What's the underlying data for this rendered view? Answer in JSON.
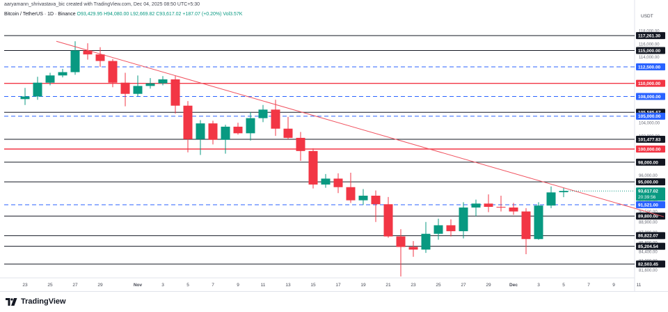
{
  "header": {
    "created_line": "aaryamann_shrivastava_bic created with TradingView.com, Dec 04, 2025 08:50 UTC+5:30",
    "symbol": "Bitcoin / TetherUS · 1D · Binance",
    "open": "O93,429.95",
    "high": "H94,080.00",
    "low": "L92,669.82",
    "close": "C93,617.02",
    "change": "+187.07 (+0.20%)",
    "volume": "Vol3.57K"
  },
  "footer": {
    "brand": "TradingView"
  },
  "colors": {
    "up": "#089981",
    "down": "#f23645",
    "trend": "#f0515e",
    "hline": "#131722",
    "dashed": "#2962ff",
    "red_line": "#f23645"
  },
  "chart_data": {
    "type": "candlestick",
    "currency": "USDT",
    "ylim": [
      80500,
      119500
    ],
    "price_ticks": [
      118000,
      116000,
      114000,
      104000,
      102000,
      96000,
      92000,
      90500,
      88900,
      87300,
      85800,
      84400,
      83000,
      81600
    ],
    "x_labels": [
      {
        "i": 0,
        "label": "23"
      },
      {
        "i": 2,
        "label": "25"
      },
      {
        "i": 4,
        "label": "27"
      },
      {
        "i": 6,
        "label": "29"
      },
      {
        "i": 9,
        "label": "Nov"
      },
      {
        "i": 11,
        "label": "3"
      },
      {
        "i": 13,
        "label": "5"
      },
      {
        "i": 15,
        "label": "7"
      },
      {
        "i": 17,
        "label": "9"
      },
      {
        "i": 19,
        "label": "11"
      },
      {
        "i": 21,
        "label": "13"
      },
      {
        "i": 23,
        "label": "15"
      },
      {
        "i": 25,
        "label": "17"
      },
      {
        "i": 27,
        "label": "19"
      },
      {
        "i": 29,
        "label": "21"
      },
      {
        "i": 31,
        "label": "23"
      },
      {
        "i": 33,
        "label": "25"
      },
      {
        "i": 35,
        "label": "27"
      },
      {
        "i": 37,
        "label": "29"
      },
      {
        "i": 39,
        "label": "Dec"
      },
      {
        "i": 41,
        "label": "3"
      },
      {
        "i": 43,
        "label": "5"
      },
      {
        "i": 45,
        "label": "7"
      },
      {
        "i": 47,
        "label": "9"
      },
      {
        "i": 49,
        "label": "11"
      }
    ],
    "candles": [
      {
        "o": 107600,
        "h": 109300,
        "l": 106700,
        "c": 108000
      },
      {
        "o": 108000,
        "h": 111000,
        "l": 107500,
        "c": 110100
      },
      {
        "o": 110100,
        "h": 111600,
        "l": 109700,
        "c": 111200
      },
      {
        "o": 111200,
        "h": 112200,
        "l": 110900,
        "c": 111700
      },
      {
        "o": 111700,
        "h": 116400,
        "l": 111300,
        "c": 115000
      },
      {
        "o": 115000,
        "h": 116100,
        "l": 113600,
        "c": 114400
      },
      {
        "o": 114400,
        "h": 115500,
        "l": 112500,
        "c": 113400
      },
      {
        "o": 113400,
        "h": 113700,
        "l": 109400,
        "c": 110100
      },
      {
        "o": 110100,
        "h": 111600,
        "l": 106500,
        "c": 108400
      },
      {
        "o": 108400,
        "h": 111200,
        "l": 108000,
        "c": 109600
      },
      {
        "o": 109600,
        "h": 110800,
        "l": 109200,
        "c": 110000
      },
      {
        "o": 110000,
        "h": 111100,
        "l": 109700,
        "c": 110600
      },
      {
        "o": 110600,
        "h": 111200,
        "l": 105400,
        "c": 106600
      },
      {
        "o": 106600,
        "h": 107300,
        "l": 99500,
        "c": 101500
      },
      {
        "o": 101500,
        "h": 104400,
        "l": 99100,
        "c": 103900
      },
      {
        "o": 103900,
        "h": 104300,
        "l": 100700,
        "c": 101400
      },
      {
        "o": 101400,
        "h": 103700,
        "l": 99300,
        "c": 103400
      },
      {
        "o": 103400,
        "h": 104000,
        "l": 102200,
        "c": 102400
      },
      {
        "o": 102400,
        "h": 105600,
        "l": 101300,
        "c": 104700
      },
      {
        "o": 104700,
        "h": 106700,
        "l": 104100,
        "c": 106000
      },
      {
        "o": 106000,
        "h": 107500,
        "l": 102000,
        "c": 103100
      },
      {
        "o": 103100,
        "h": 104900,
        "l": 101500,
        "c": 101700
      },
      {
        "o": 101700,
        "h": 102600,
        "l": 98200,
        "c": 99700
      },
      {
        "o": 99700,
        "h": 100100,
        "l": 94000,
        "c": 94600
      },
      {
        "o": 94600,
        "h": 96200,
        "l": 94100,
        "c": 95500
      },
      {
        "o": 95500,
        "h": 96300,
        "l": 93300,
        "c": 94200
      },
      {
        "o": 94200,
        "h": 96400,
        "l": 91800,
        "c": 92200
      },
      {
        "o": 92200,
        "h": 93900,
        "l": 91500,
        "c": 92900
      },
      {
        "o": 92900,
        "h": 93700,
        "l": 88900,
        "c": 91600
      },
      {
        "o": 91600,
        "h": 92700,
        "l": 86500,
        "c": 86700
      },
      {
        "o": 86700,
        "h": 87800,
        "l": 80600,
        "c": 85100
      },
      {
        "o": 85100,
        "h": 86000,
        "l": 83600,
        "c": 84700
      },
      {
        "o": 84700,
        "h": 88900,
        "l": 84200,
        "c": 87100
      },
      {
        "o": 87100,
        "h": 89400,
        "l": 86200,
        "c": 88400
      },
      {
        "o": 88400,
        "h": 89300,
        "l": 86700,
        "c": 87500
      },
      {
        "o": 87500,
        "h": 91900,
        "l": 86400,
        "c": 91100
      },
      {
        "o": 91100,
        "h": 92300,
        "l": 89800,
        "c": 91700
      },
      {
        "o": 91700,
        "h": 93100,
        "l": 90400,
        "c": 91200
      },
      {
        "o": 91200,
        "h": 92900,
        "l": 90500,
        "c": 91100
      },
      {
        "o": 91100,
        "h": 91800,
        "l": 90000,
        "c": 90500
      },
      {
        "o": 90500,
        "h": 91000,
        "l": 84000,
        "c": 86300
      },
      {
        "o": 86300,
        "h": 91900,
        "l": 86200,
        "c": 91400
      },
      {
        "o": 91400,
        "h": 94300,
        "l": 91000,
        "c": 93400
      },
      {
        "o": 93430,
        "h": 94080,
        "l": 92670,
        "c": 93617
      }
    ],
    "h_lines": [
      {
        "price": 117261.3,
        "label": "117,261.30",
        "style": "solid"
      },
      {
        "price": 115000,
        "label": "115,000.00",
        "style": "solid"
      },
      {
        "price": 112500,
        "label": "112,500.00",
        "style": "dashed"
      },
      {
        "price": 110000,
        "label": "110,000.00",
        "style": "red"
      },
      {
        "price": 108000,
        "label": "108,000.00",
        "style": "dashed"
      },
      {
        "price": 105585.67,
        "label": "105,585.67",
        "style": "solid"
      },
      {
        "price": 105000,
        "label": "105,000.00",
        "style": "dashed"
      },
      {
        "price": 101477.83,
        "label": "101,477.83",
        "style": "solid"
      },
      {
        "price": 100000,
        "label": "100,000.00",
        "style": "red"
      },
      {
        "price": 98000,
        "label": "98,000.00",
        "style": "solid"
      },
      {
        "price": 95000,
        "label": "95,000.00",
        "style": "solid"
      },
      {
        "price": 91521,
        "label": "91,521.00",
        "style": "dashed"
      },
      {
        "price": 89800,
        "label": "89,800.00",
        "style": "solid"
      },
      {
        "price": 86822.07,
        "label": "86,822.07",
        "style": "solid"
      },
      {
        "price": 85204.54,
        "label": "85,204.54",
        "style": "solid"
      },
      {
        "price": 82503.45,
        "label": "82,503.45",
        "style": "solid"
      }
    ],
    "current_price": {
      "price": 93617.02,
      "label": "93,617.02",
      "countdown": "20:39:56"
    },
    "trendline": {
      "from": {
        "i": 2.5,
        "price": 116400
      },
      "to": {
        "i": 51,
        "price": 89700
      }
    }
  }
}
